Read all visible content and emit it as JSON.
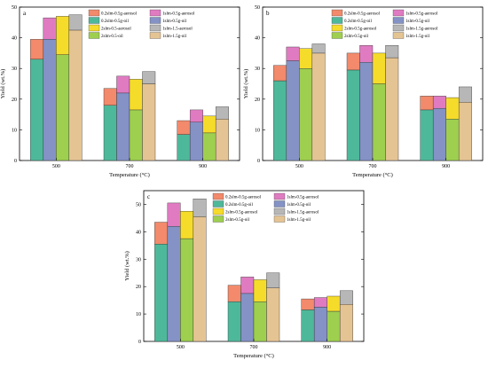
{
  "chart_data": [
    {
      "type": "bar",
      "panel_label": "a",
      "xlabel": "Temperature (°C)",
      "ylabel": "Yield (wt.%)",
      "categories": [
        "500",
        "700",
        "900"
      ],
      "ylim": [
        0,
        50
      ],
      "yticks": [
        0,
        10,
        20,
        30,
        40,
        50
      ],
      "stacked_pairs": true,
      "series": [
        {
          "name": "0.2slm-0.5g-oil",
          "values": [
            33,
            18,
            8.5
          ]
        },
        {
          "name": "0.2slm-0.5g-aerosol",
          "values": [
            6.5,
            5.5,
            4.5
          ]
        },
        {
          "name": "1slm-0.5g-oil",
          "values": [
            39.5,
            22,
            12.5
          ]
        },
        {
          "name": "1slm-0.5g-aerosol",
          "values": [
            7,
            5.5,
            4
          ]
        },
        {
          "name": "2slm-0.5-oil",
          "values": [
            34.5,
            16.5,
            9
          ]
        },
        {
          "name": "2slm-0.5-aerosol",
          "values": [
            12.5,
            10,
            5.5
          ]
        },
        {
          "name": "1slm-1.5g-oil",
          "values": [
            42.5,
            25,
            13.5
          ]
        },
        {
          "name": "1slm-1.5-aerosol",
          "values": [
            5,
            4,
            4
          ]
        }
      ],
      "legend_position": "top"
    },
    {
      "type": "bar",
      "panel_label": "b",
      "xlabel": "Temperature (°C)",
      "ylabel": "Yield (wt.%)",
      "categories": [
        "500",
        "700",
        "900"
      ],
      "ylim": [
        0,
        50
      ],
      "yticks": [
        0,
        10,
        20,
        30,
        40,
        50
      ],
      "stacked_pairs": true,
      "series": [
        {
          "name": "0.2slm-0.5g-oil",
          "values": [
            26,
            29.5,
            16.5
          ]
        },
        {
          "name": "0.2slm-0.5g-aerosol",
          "values": [
            5,
            5.5,
            4.5
          ]
        },
        {
          "name": "1slm-0.5g-oil",
          "values": [
            32.5,
            32,
            17
          ]
        },
        {
          "name": "1slm-0.5g-aerosol",
          "values": [
            4.5,
            5.5,
            4
          ]
        },
        {
          "name": "2slm-0.5g-oil",
          "values": [
            30,
            25,
            13.5
          ]
        },
        {
          "name": "2slm-0.5g-aerosol",
          "values": [
            6.5,
            10,
            7
          ]
        },
        {
          "name": "1slm-1.5g-oil",
          "values": [
            35,
            33.5,
            19
          ]
        },
        {
          "name": "1slm-1.5g-aerosol",
          "values": [
            3,
            4,
            5
          ]
        }
      ],
      "legend_position": "top"
    },
    {
      "type": "bar",
      "panel_label": "c",
      "xlabel": "Temperature (°C)",
      "ylabel": "Yield (wt.%)",
      "categories": [
        "500",
        "700",
        "900"
      ],
      "ylim": [
        0,
        55
      ],
      "yticks": [
        0,
        10,
        20,
        30,
        40,
        50
      ],
      "stacked_pairs": true,
      "series": [
        {
          "name": "0.2slm-0.5g-oil",
          "values": [
            35.5,
            14.5,
            11.5
          ]
        },
        {
          "name": "0.2slm-0.5g-aerosol",
          "values": [
            8,
            6,
            4
          ]
        },
        {
          "name": "1slm-0.5g-oil",
          "values": [
            42,
            17.5,
            12.5
          ]
        },
        {
          "name": "1slm-0.5g-aerosol",
          "values": [
            8.5,
            6,
            3.5
          ]
        },
        {
          "name": "2slm-0.5g-oil",
          "values": [
            37.5,
            14.5,
            11
          ]
        },
        {
          "name": "2slm-0.5g-aerosol",
          "values": [
            10,
            8,
            5.5
          ]
        },
        {
          "name": "1slm-1.5g-oil",
          "values": [
            45.5,
            19.5,
            13.5
          ]
        },
        {
          "name": "1slm-1.5g-aerosol",
          "values": [
            6.5,
            5.5,
            5
          ]
        }
      ],
      "legend_position": "top"
    }
  ],
  "colors": {
    "oil": [
      "#4eb89a",
      "#8492c6",
      "#9ecf4f",
      "#e5c493"
    ],
    "aerosol": [
      "#f28a6b",
      "#e07bc2",
      "#f6dc2a",
      "#b7b7b7"
    ],
    "edge": "#333333"
  },
  "legend_layout": {
    "a": [
      "0.2slm-0.5g-aerosol",
      "1slm-0.5g-aerosol",
      "0.2slm-0.5g-oil",
      "1slm-0.5g-oil",
      "2slm-0.5-aerosol",
      "1slm-1.5-aerosol",
      "2slm-0.5-oil",
      "1slm-1.5g-oil"
    ],
    "b": [
      "0.2slm-0.5g-aerosol",
      "1slm-0.5g-aerosol",
      "0.2slm-0.5g-oil",
      "1slm-0.5g-oil",
      "2slm-0.5g-aerosol",
      "1slm-1.5g-aerosol",
      "2slm-0.5g-oil",
      "1slm-1.5g-oil"
    ],
    "c": [
      "0.2slm-0.5g-aerosol",
      "1slm-0.5g-aerosol",
      "0.2slm-0.5g-oil",
      "1slm-0.5g-oil",
      "2slm-0.5g-aerosol",
      "1slm-1.5g-aerosol",
      "2slm-0.5g-oil",
      "1slm-1.5g-oil"
    ]
  }
}
